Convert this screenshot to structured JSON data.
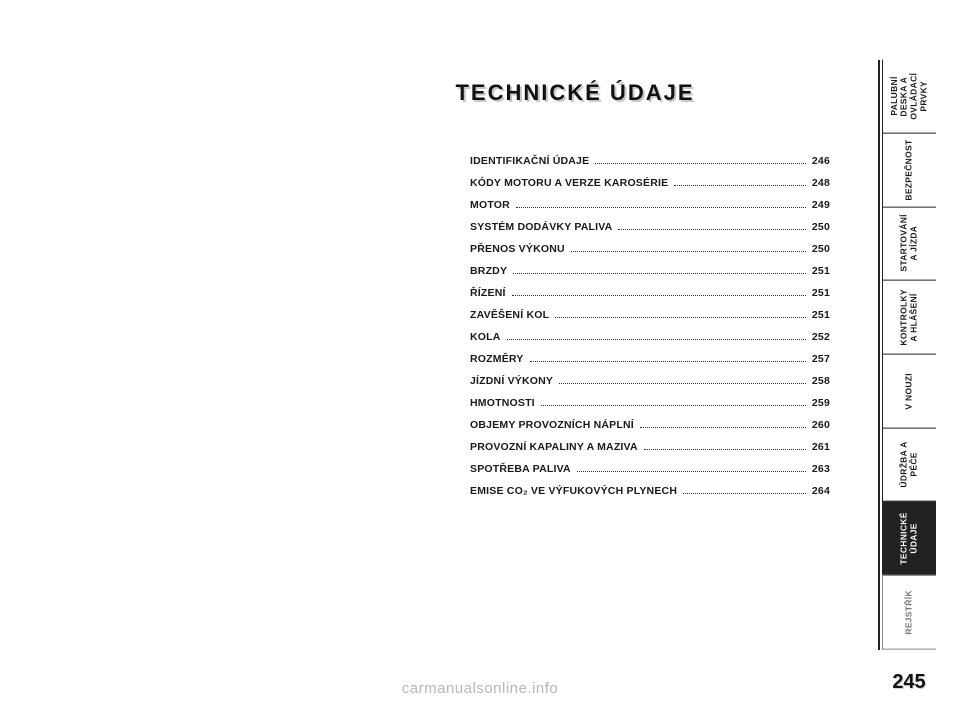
{
  "title": "TECHNICKÉ  ÚDAJE",
  "page_number": "245",
  "watermark": "carmanualsonline.info",
  "toc": [
    {
      "label": "IDENTIFIKAČNÍ ÚDAJE",
      "page": "246"
    },
    {
      "label": "KÓDY MOTORU A VERZE KAROSÉRIE",
      "page": "248"
    },
    {
      "label": "MOTOR",
      "page": "249"
    },
    {
      "label": "SYSTÉM DODÁVKY PALIVA",
      "page": "250"
    },
    {
      "label": "PŘENOS VÝKONU",
      "page": "250"
    },
    {
      "label": "BRZDY",
      "page": "251"
    },
    {
      "label": "ŘÍZENÍ",
      "page": "251"
    },
    {
      "label": "ZAVĚŠENÍ KOL",
      "page": "251"
    },
    {
      "label": "KOLA",
      "page": "252"
    },
    {
      "label": "ROZMĚRY",
      "page": "257"
    },
    {
      "label": "JÍZDNÍ VÝKONY",
      "page": "258"
    },
    {
      "label": "HMOTNOSTI",
      "page": "259"
    },
    {
      "label": "OBJEMY PROVOZNÍCH NÁPLNÍ",
      "page": "260"
    },
    {
      "label": "PROVOZNÍ KAPALINY A MAZIVA",
      "page": "261"
    },
    {
      "label": "SPOTŘEBA PALIVA",
      "page": "263"
    },
    {
      "label": "EMISE CO₂ VE VÝFUKOVÝCH PLYNECH",
      "page": "264"
    }
  ],
  "tabs": [
    {
      "label": "PALUBNÍ DESKA\nA OVLÁDACÍ PRVKY",
      "state": "normal"
    },
    {
      "label": "BEZPEČNOST",
      "state": "normal"
    },
    {
      "label": "STARTOVÁNÍ\nA JÍZDA",
      "state": "normal"
    },
    {
      "label": "KONTROLKY\nA HLÁŠENÍ",
      "state": "normal"
    },
    {
      "label": "V NOUZI",
      "state": "normal"
    },
    {
      "label": "ÚDRŽBA\nA PÉČE",
      "state": "normal"
    },
    {
      "label": "TECHNICKÉ ÚDAJE",
      "state": "active"
    },
    {
      "label": "REJSTŘÍK",
      "state": "dim"
    }
  ],
  "colors": {
    "text": "#1a1a1a",
    "shadow": "#c8c8c8",
    "line": "#222222",
    "watermark": "#b8b8b8",
    "tab_active_bg": "#222222",
    "tab_dim": "#777777"
  }
}
